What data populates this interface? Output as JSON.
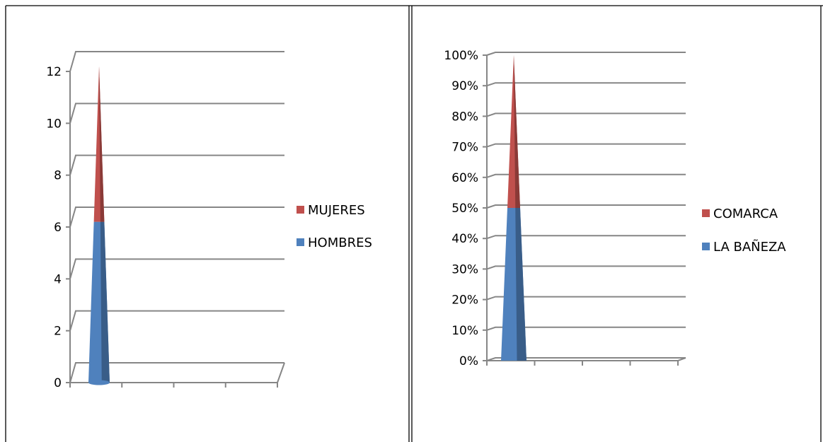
{
  "chart_data": [
    {
      "type": "bar",
      "stacked": true,
      "shape": "cone",
      "three_d": true,
      "categories": [
        ""
      ],
      "series": [
        {
          "name": "HOMBRES",
          "values": [
            6.2
          ],
          "color": "#4f81bd"
        },
        {
          "name": "MUJERES",
          "values": [
            6.0
          ],
          "color": "#c0504d"
        }
      ],
      "legend_order": [
        "MUJERES",
        "HOMBRES"
      ],
      "ylim": [
        0,
        12
      ],
      "yticks": [
        0,
        2,
        4,
        6,
        8,
        10,
        12
      ],
      "ytick_labels": [
        "0",
        "2",
        "4",
        "6",
        "8",
        "10",
        "12"
      ],
      "grid": true,
      "legend": "right"
    },
    {
      "type": "bar",
      "stacked": true,
      "percent": true,
      "shape": "cone",
      "three_d": true,
      "categories": [
        ""
      ],
      "series": [
        {
          "name": "LA BAÑEZA",
          "values": [
            50
          ],
          "color": "#4f81bd"
        },
        {
          "name": "COMARCA",
          "values": [
            50
          ],
          "color": "#c0504d"
        }
      ],
      "legend_order": [
        "COMARCA",
        "LA BAÑEZA"
      ],
      "ylim": [
        0,
        100
      ],
      "yticks": [
        0,
        10,
        20,
        30,
        40,
        50,
        60,
        70,
        80,
        90,
        100
      ],
      "ytick_labels": [
        "0%",
        "10%",
        "20%",
        "30%",
        "40%",
        "50%",
        "60%",
        "70%",
        "80%",
        "90%",
        "100%"
      ],
      "grid": true,
      "legend": "right"
    }
  ]
}
